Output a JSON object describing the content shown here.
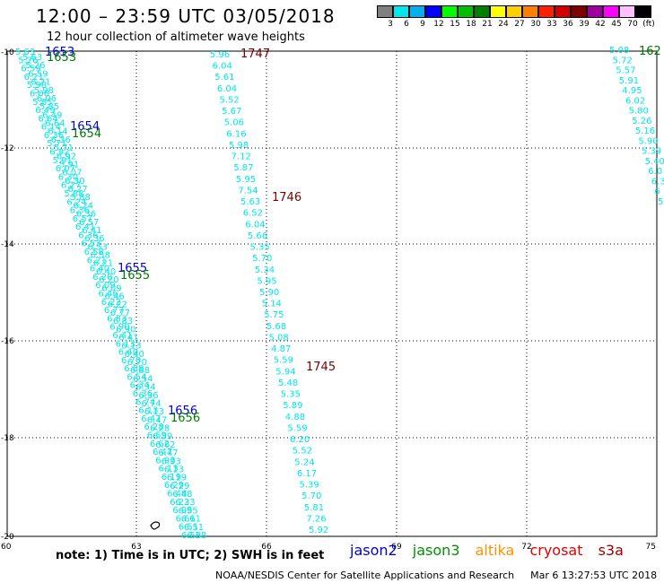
{
  "title": "12:00 – 23:59 UTC 03/05/2018",
  "subtitle": "12 hour collection of altimeter wave heights",
  "scale": {
    "colors": [
      "#808080",
      "#00e8e8",
      "#00b0f0",
      "#0000ff",
      "#00ff00",
      "#00c000",
      "#008000",
      "#ffff00",
      "#ffd000",
      "#ff8000",
      "#ff2000",
      "#d00000",
      "#800000",
      "#a000a0",
      "#ff00ff",
      "#ffc0ff",
      "#000000"
    ],
    "ticks": [
      "3",
      "6",
      "9",
      "12",
      "15",
      "18",
      "21",
      "24",
      "27",
      "30",
      "33",
      "36",
      "39",
      "42",
      "45",
      "70",
      "(ft)"
    ]
  },
  "axes": {
    "x_ticks": [
      "60",
      "63",
      "66",
      "69",
      "72",
      "75"
    ],
    "y_ticks": [
      "-10",
      "-12",
      "-14",
      "-16",
      "-18",
      "-20"
    ]
  },
  "passes": {
    "jason2_labels": [
      "1653",
      "1654",
      "1655",
      "1656"
    ],
    "jason3_labels": [
      "1653",
      "1654",
      "1655",
      "1656"
    ],
    "cryosat_labels": [
      "1747",
      "1746",
      "1745"
    ],
    "right_label": "162",
    "center_track_values": [
      "5.96",
      "6.04",
      "5.61",
      "6.04",
      "5.52",
      "5.67",
      "5.06",
      "6.16",
      "5.98",
      "7.12",
      "5.87",
      "5.95",
      "7.54",
      "5.63",
      "6.52",
      "6.04",
      "5.66",
      "5.35",
      "5.70",
      "5.34",
      "5.95",
      "5.90",
      "5.14",
      "5.75",
      "5.68",
      "5.08",
      "4.87",
      "5.59",
      "5.94",
      "5.48",
      "5.35",
      "5.89",
      "4.88",
      "5.59",
      "6.20",
      "5.52",
      "5.24",
      "6.17",
      "5.39",
      "5.70",
      "5.81",
      "7.26",
      "5.92"
    ],
    "right_track_values": [
      "5.08",
      "5.72",
      "5.57",
      "5.91",
      "4.95",
      "6.02",
      "5.80",
      "5.26",
      "5.16",
      "5.90",
      "5.39",
      "5.40",
      "6.0",
      "6.3",
      "6",
      "5"
    ],
    "left_track_values": [
      "5.63",
      "5.26",
      "6.59",
      "6.21",
      "5.98",
      "6.06",
      "5.85",
      "6.49",
      "6.64",
      "6.14",
      "6.36",
      "5.71",
      "6.92",
      "5.91",
      "6.07",
      "6.30",
      "6.27",
      "5.88",
      "6.24",
      "6.36",
      "6.57",
      "6.41",
      "6.36",
      "6.53",
      "6.58",
      "6.21",
      "6.40",
      "6.20",
      "6.09",
      "6.46",
      "6.22",
      "6.77",
      "6.83",
      "6.90",
      "6.41",
      "6.13",
      "6.40",
      "6.70",
      "6.88",
      "6.54",
      "6.34",
      "6.36",
      "6.74",
      "6.13",
      "6.47",
      "6.28",
      "6.59",
      "6.62",
      "6.47",
      "6.93",
      "6.13",
      "6.19",
      "6.29",
      "6.48",
      "6.23",
      "6.95",
      "6.61",
      "6.51",
      "6.58"
    ]
  },
  "note": "note:  1) Time is in UTC;  2) SWH is in feet",
  "legend": {
    "jason2": "jason2",
    "jason2_color": "#0000e0",
    "jason3": "jason3",
    "jason3_color": "#009000",
    "altika": "altika",
    "altika_color": "#ff9000",
    "cryosat": "cryosat",
    "cryosat_color": "#e00000",
    "s3a": "s3a",
    "s3a_color": "#a00000"
  },
  "credit": "NOAA/NESDIS Center for Satellite Applications and Research",
  "timestamp": "Mar  6 13:27:53 UTC 2018",
  "track_color": "#00e8e8"
}
